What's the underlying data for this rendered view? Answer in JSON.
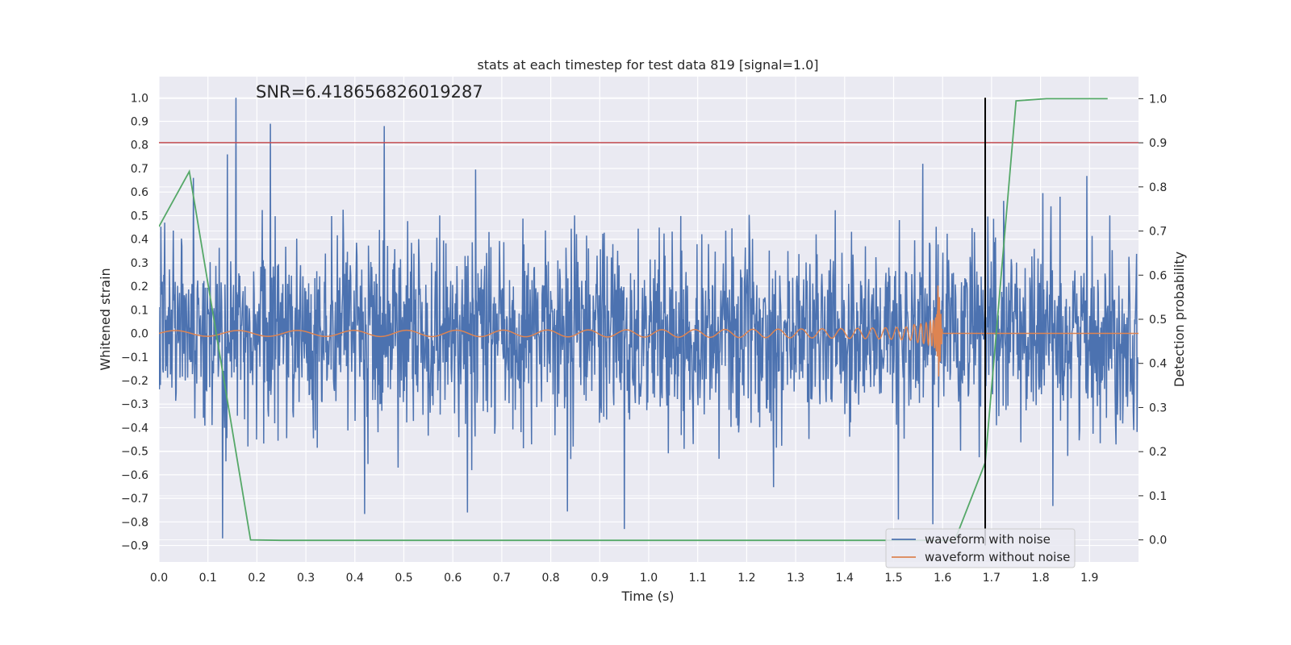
{
  "chart_data": {
    "type": "line",
    "title": "stats at each timestep for test data 819 [signal=1.0]",
    "annotation": "SNR=6.418656826019287",
    "xlabel": "Time (s)",
    "ylabel": "Whitened strain",
    "y2label": "Detection probability",
    "xlim": [
      0.0,
      2.0
    ],
    "ylim": [
      -0.97,
      1.09
    ],
    "y2lim": [
      -0.05,
      1.05
    ],
    "x_ticks": [
      0.0,
      0.1,
      0.2,
      0.3,
      0.4,
      0.5,
      0.6,
      0.7,
      0.8,
      0.9,
      1.0,
      1.1,
      1.2,
      1.3,
      1.4,
      1.5,
      1.6,
      1.7,
      1.8,
      1.9
    ],
    "x_tick_labels": [
      "0.0",
      "0.1",
      "0.2",
      "0.3",
      "0.4",
      "0.5",
      "0.6",
      "0.7",
      "0.8",
      "0.9",
      "1.0",
      "1.1",
      "1.2",
      "1.3",
      "1.4",
      "1.5",
      "1.6",
      "1.7",
      "1.8",
      "1.9"
    ],
    "y_ticks": [
      1.0,
      0.9,
      0.8,
      0.7,
      0.6,
      0.5,
      0.4,
      0.3,
      0.2,
      0.1,
      0.0,
      -0.1,
      -0.2,
      -0.3,
      -0.4,
      -0.5,
      -0.6,
      -0.7,
      -0.8,
      -0.9
    ],
    "y_tick_labels": [
      "1.0",
      "0.9",
      "0.8",
      "0.7",
      "0.6",
      "0.5",
      "0.4",
      "0.3",
      "0.2",
      "0.1",
      "0.0",
      "−0.1",
      "−0.2",
      "−0.3",
      "−0.4",
      "−0.5",
      "−0.6",
      "−0.7",
      "−0.8",
      "−0.9"
    ],
    "y2_ticks": [
      1.0,
      0.9,
      0.8,
      0.7,
      0.6,
      0.5,
      0.4,
      0.3,
      0.2,
      0.1,
      0.0
    ],
    "y2_tick_labels": [
      "1.0",
      "0.9",
      "0.8",
      "0.7",
      "0.6",
      "0.5",
      "0.4",
      "0.3",
      "0.2",
      "0.1",
      "0.0"
    ],
    "grid": true,
    "legend": {
      "placement": "lower-right",
      "entries": [
        "waveform with noise",
        "waveform without noise"
      ]
    },
    "series": [
      {
        "name": "waveform with noise",
        "axis": "left",
        "color": "#4c72b0",
        "kind": "noise",
        "n_samples": 2048,
        "x_range": [
          0.0,
          2.0
        ],
        "spikes": [
          {
            "x": 0.157,
            "y": 1.0
          },
          {
            "x": 0.228,
            "y": 0.89
          },
          {
            "x": 0.46,
            "y": 0.88
          },
          {
            "x": 0.13,
            "y": -0.87
          },
          {
            "x": 0.95,
            "y": -0.83
          },
          {
            "x": 1.58,
            "y": -0.81
          },
          {
            "x": 1.51,
            "y": -0.79
          },
          {
            "x": 0.63,
            "y": -0.76
          },
          {
            "x": 0.07,
            "y": 0.66
          },
          {
            "x": 0.14,
            "y": 0.76
          },
          {
            "x": 1.56,
            "y": 0.72
          },
          {
            "x": 1.84,
            "y": 0.58
          }
        ]
      },
      {
        "name": "waveform without noise",
        "axis": "left",
        "color": "#dd8452",
        "kind": "chirp",
        "merger_time": 1.59,
        "ringdown_end": 1.6,
        "peak_amplitude": 0.4,
        "x_range": [
          0.0,
          2.0
        ]
      },
      {
        "name": "Detection probability",
        "axis": "right",
        "color": "#55a868",
        "x": [
          0.0,
          0.062,
          0.187,
          0.25,
          1.625,
          1.687,
          1.75,
          1.812,
          1.937
        ],
        "y": [
          0.71,
          0.835,
          0.0,
          -0.001,
          -0.001,
          0.175,
          0.995,
          1.0,
          1.0
        ]
      }
    ],
    "threshold_line": {
      "axis": "left",
      "y": 0.81,
      "color": "#c44e52"
    },
    "marker_line": {
      "x": 1.687,
      "y_range": [
        -0.9,
        1.0
      ],
      "color": "#000000"
    },
    "colors": {
      "background": "#eaeaf2",
      "grid": "#ffffff",
      "text": "#262626"
    }
  }
}
